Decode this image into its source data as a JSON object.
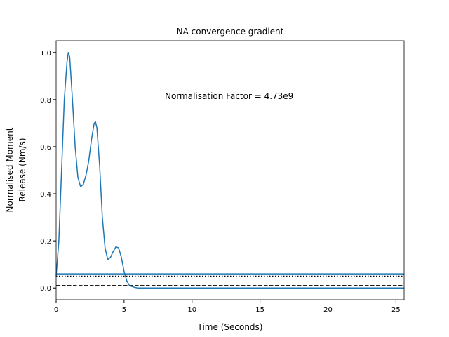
{
  "chart_data": {
    "type": "line",
    "title": "NA convergence gradient",
    "xlabel": "Time (Seconds)",
    "ylabel": [
      "Normalised Moment",
      "Release (Nm/s)"
    ],
    "annotation": "Normalisation Factor = 4.73e9",
    "x": [
      0,
      0.2,
      0.4,
      0.6,
      0.8,
      0.9,
      1.0,
      1.2,
      1.4,
      1.6,
      1.8,
      2.0,
      2.2,
      2.4,
      2.6,
      2.8,
      2.9,
      3.0,
      3.2,
      3.4,
      3.6,
      3.8,
      4.0,
      4.2,
      4.4,
      4.6,
      4.8,
      5.0,
      5.2,
      5.4,
      5.8,
      6.0,
      25.6
    ],
    "series": [
      {
        "color": "#1f77b4",
        "values": [
          0.05,
          0.2,
          0.5,
          0.8,
          0.96,
          1.0,
          0.98,
          0.8,
          0.6,
          0.47,
          0.43,
          0.44,
          0.48,
          0.54,
          0.63,
          0.7,
          0.705,
          0.68,
          0.52,
          0.3,
          0.17,
          0.12,
          0.13,
          0.155,
          0.175,
          0.17,
          0.13,
          0.07,
          0.03,
          0.01,
          0.002,
          0,
          0
        ]
      }
    ],
    "reference_lines": [
      {
        "value": 0.06,
        "color": "#1f77b4",
        "style": "solid"
      },
      {
        "value": 0.05,
        "color": "#000000",
        "style": "dotted"
      },
      {
        "value": 0.01,
        "color": "#000000",
        "style": "dashed"
      }
    ],
    "xlim": [
      0,
      25.6
    ],
    "ylim": [
      -0.05,
      1.05
    ],
    "xticks": [
      0,
      5,
      10,
      15,
      20,
      25
    ],
    "yticks": [
      {
        "value": 0,
        "label": "0.0"
      },
      {
        "value": 0.2,
        "label": "0.2"
      },
      {
        "value": 0.4,
        "label": "0.4"
      },
      {
        "value": 0.6,
        "label": "0.6"
      },
      {
        "value": 0.8,
        "label": "0.8"
      },
      {
        "value": 1,
        "label": "1.0"
      }
    ]
  }
}
